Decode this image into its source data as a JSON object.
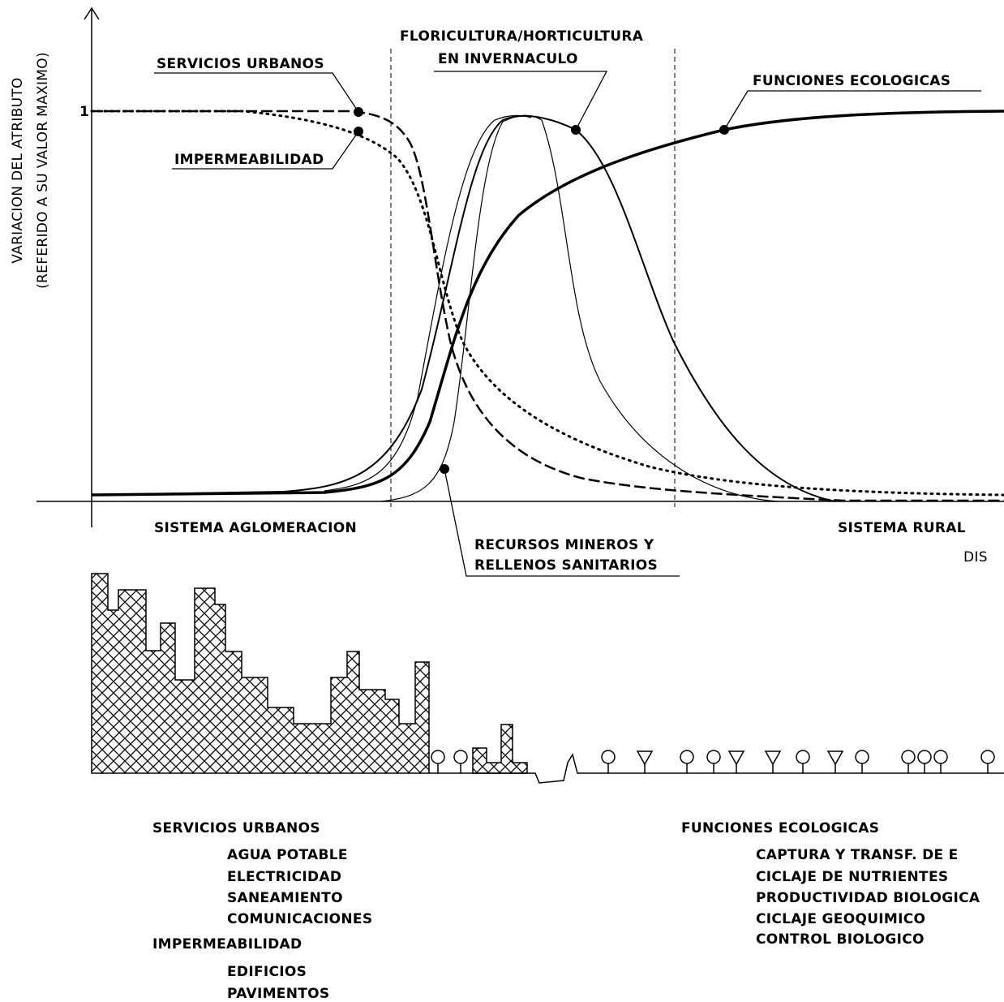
{
  "axis": {
    "y_label_1": "VARIACION DEL ATRIBUTO",
    "y_label_2": "(REFERIDO A SU VALOR MAXIMO)",
    "y_one": "1"
  },
  "curve_labels": {
    "servicios": "SERVICIOS URBANOS",
    "impermeabilidad": "IMPERMEABILIDAD",
    "floricultura_1": "FLORICULTURA/HORTICULTURA",
    "floricultura_2": "EN INVERNACULO",
    "funciones": "FUNCIONES ECOLOGICAS",
    "recursos_1": "RECURSOS MINEROS Y",
    "recursos_2": "RELLENOS SANITARIOS"
  },
  "zones": {
    "aglomeracion": "SISTEMA AGLOMERACION",
    "rural": "SISTEMA RURAL",
    "distance": "DIS"
  },
  "left_list": {
    "heading_1": "SERVICIOS URBANOS",
    "items_1": [
      "AGUA POTABLE",
      "ELECTRICIDAD",
      "SANEAMIENTO",
      "COMUNICACIONES"
    ],
    "heading_2": "IMPERMEABILIDAD",
    "items_2": [
      "EDIFICIOS",
      "PAVIMENTOS"
    ]
  },
  "right_list": {
    "heading": "FUNCIONES ECOLOGICAS",
    "items": [
      "CAPTURA Y TRANSF. DE E",
      "CICLAJE DE NUTRIENTES",
      "PRODUCTIVIDAD BIOLOGICA",
      "CICLAJE GEOQUIMICO",
      "CONTROL BIOLOGICO"
    ]
  }
}
